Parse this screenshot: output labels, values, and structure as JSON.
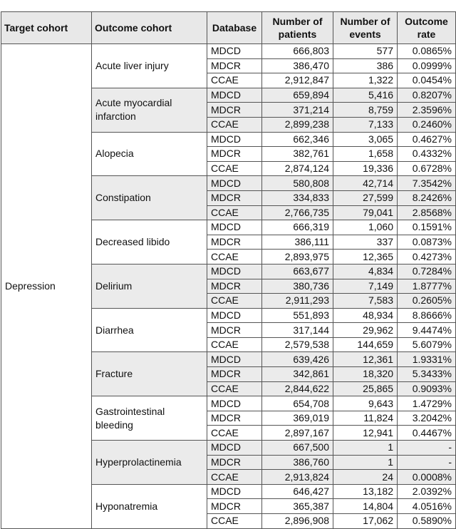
{
  "table": {
    "headers": [
      "Target cohort",
      "Outcome cohort",
      "Database",
      "Number of patients",
      "Number of events",
      "Outcome rate"
    ],
    "target": "Depression",
    "groups": [
      {
        "outcome": "Acute liver injury",
        "rows": [
          [
            "MDCD",
            "666,803",
            "577",
            "0.0865%"
          ],
          [
            "MDCR",
            "386,470",
            "386",
            "0.0999%"
          ],
          [
            "CCAE",
            "2,912,847",
            "1,322",
            "0.0454%"
          ]
        ]
      },
      {
        "outcome": "Acute myocardial infarction",
        "rows": [
          [
            "MDCD",
            "659,894",
            "5,416",
            "0.8207%"
          ],
          [
            "MDCR",
            "371,214",
            "8,759",
            "2.3596%"
          ],
          [
            "CCAE",
            "2,899,238",
            "7,133",
            "0.2460%"
          ]
        ]
      },
      {
        "outcome": "Alopecia",
        "rows": [
          [
            "MDCD",
            "662,346",
            "3,065",
            "0.4627%"
          ],
          [
            "MDCR",
            "382,761",
            "1,658",
            "0.4332%"
          ],
          [
            "CCAE",
            "2,874,124",
            "19,336",
            "0.6728%"
          ]
        ]
      },
      {
        "outcome": "Constipation",
        "rows": [
          [
            "MDCD",
            "580,808",
            "42,714",
            "7.3542%"
          ],
          [
            "MDCR",
            "334,833",
            "27,599",
            "8.2426%"
          ],
          [
            "CCAE",
            "2,766,735",
            "79,041",
            "2.8568%"
          ]
        ]
      },
      {
        "outcome": "Decreased libido",
        "rows": [
          [
            "MDCD",
            "666,319",
            "1,060",
            "0.1591%"
          ],
          [
            "MDCR",
            "386,111",
            "337",
            "0.0873%"
          ],
          [
            "CCAE",
            "2,893,975",
            "12,365",
            "0.4273%"
          ]
        ]
      },
      {
        "outcome": "Delirium",
        "rows": [
          [
            "MDCD",
            "663,677",
            "4,834",
            "0.7284%"
          ],
          [
            "MDCR",
            "380,736",
            "7,149",
            "1.8777%"
          ],
          [
            "CCAE",
            "2,911,293",
            "7,583",
            "0.2605%"
          ]
        ]
      },
      {
        "outcome": "Diarrhea",
        "rows": [
          [
            "MDCD",
            "551,893",
            "48,934",
            "8.8666%"
          ],
          [
            "MDCR",
            "317,144",
            "29,962",
            "9.4474%"
          ],
          [
            "CCAE",
            "2,579,538",
            "144,659",
            "5.6079%"
          ]
        ]
      },
      {
        "outcome": "Fracture",
        "rows": [
          [
            "MDCD",
            "639,426",
            "12,361",
            "1.9331%"
          ],
          [
            "MDCR",
            "342,861",
            "18,320",
            "5.3433%"
          ],
          [
            "CCAE",
            "2,844,622",
            "25,865",
            "0.9093%"
          ]
        ]
      },
      {
        "outcome": "Gastrointestinal bleeding",
        "rows": [
          [
            "MDCD",
            "654,708",
            "9,643",
            "1.4729%"
          ],
          [
            "MDCR",
            "369,019",
            "11,824",
            "3.2042%"
          ],
          [
            "CCAE",
            "2,897,167",
            "12,941",
            "0.4467%"
          ]
        ]
      },
      {
        "outcome": "Hyperprolactinemia",
        "rows": [
          [
            "MDCD",
            "667,500",
            "1",
            "-"
          ],
          [
            "MDCR",
            "386,760",
            "1",
            "-"
          ],
          [
            "CCAE",
            "2,913,824",
            "24",
            "0.0008%"
          ]
        ]
      },
      {
        "outcome": "Hyponatremia",
        "rows": [
          [
            "MDCD",
            "646,427",
            "13,182",
            "2.0392%"
          ],
          [
            "MDCR",
            "365,387",
            "14,804",
            "4.0516%"
          ],
          [
            "CCAE",
            "2,896,908",
            "17,062",
            "0.5890%"
          ]
        ]
      }
    ]
  }
}
